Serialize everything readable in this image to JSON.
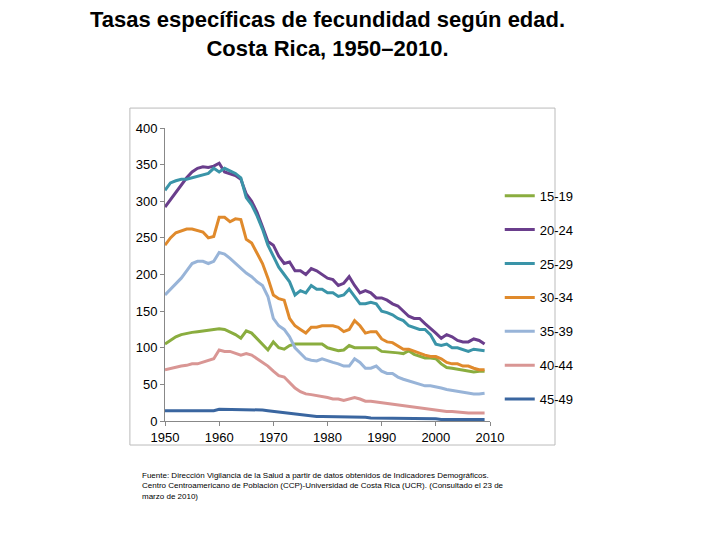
{
  "chart_data": {
    "type": "line",
    "title": [
      "Tasas específicas de fecundidad según edad.",
      "Costa Rica, 1950–2010."
    ],
    "source": [
      "Fuente: Dirección Vigilancia de la Salud a partir de datos obtenidos de Indicadores Demográficos.",
      "Centro Centroamericano de Población (CCP)-Universidad de Costa Rica (UCR). (Consultado el 23 de",
      "marzo de 2010)"
    ],
    "x": [
      1950,
      1951,
      1952,
      1953,
      1954,
      1955,
      1956,
      1957,
      1958,
      1959,
      1960,
      1961,
      1962,
      1963,
      1964,
      1965,
      1966,
      1967,
      1968,
      1969,
      1970,
      1971,
      1972,
      1973,
      1974,
      1975,
      1976,
      1977,
      1978,
      1979,
      1980,
      1981,
      1982,
      1983,
      1984,
      1985,
      1986,
      1987,
      1988,
      1989,
      1990,
      1991,
      1992,
      1993,
      1994,
      1995,
      1996,
      1997,
      1998,
      1999,
      2000,
      2001,
      2002,
      2003,
      2004,
      2005,
      2006,
      2007,
      2008,
      2009
    ],
    "xlim": [
      1950,
      2010
    ],
    "xticks": [
      1950,
      1960,
      1970,
      1980,
      1990,
      2000,
      2010
    ],
    "ylim": [
      0,
      400
    ],
    "yticks": [
      0,
      50,
      100,
      150,
      200,
      250,
      300,
      350,
      400
    ],
    "grid": false,
    "legend": "right",
    "series": [
      {
        "name": "15-19",
        "color": "#8aad3f",
        "values": [
          105,
          110,
          115,
          118,
          120,
          121,
          122,
          123,
          124,
          124,
          126,
          125,
          122,
          118,
          113,
          123,
          120,
          112,
          105,
          97,
          108,
          100,
          98,
          103,
          105,
          105,
          104,
          105,
          104,
          105,
          100,
          98,
          96,
          97,
          103,
          100,
          100,
          100,
          99,
          100,
          95,
          94,
          93,
          93,
          92,
          96,
          91,
          88,
          86,
          86,
          85,
          78,
          73,
          72,
          71,
          70,
          68,
          67,
          68,
          68
        ]
      },
      {
        "name": "20-24",
        "color": "#6a3e8c",
        "values": [
          292,
          302,
          312,
          322,
          332,
          340,
          345,
          347,
          346,
          348,
          352,
          340,
          338,
          335,
          330,
          310,
          300,
          285,
          265,
          245,
          240,
          225,
          215,
          217,
          205,
          205,
          200,
          208,
          205,
          200,
          195,
          193,
          185,
          188,
          197,
          185,
          175,
          178,
          175,
          168,
          168,
          165,
          160,
          157,
          150,
          143,
          140,
          140,
          133,
          127,
          120,
          113,
          118,
          115,
          110,
          108,
          108,
          112,
          110,
          105
        ]
      },
      {
        "name": "25-29",
        "color": "#3a94a8",
        "values": [
          315,
          325,
          328,
          330,
          330,
          332,
          333,
          335,
          338,
          345,
          340,
          345,
          342,
          338,
          332,
          305,
          295,
          280,
          262,
          240,
          225,
          210,
          200,
          190,
          172,
          178,
          175,
          185,
          180,
          180,
          175,
          175,
          170,
          172,
          180,
          170,
          160,
          160,
          162,
          160,
          150,
          148,
          145,
          140,
          137,
          130,
          127,
          125,
          125,
          118,
          105,
          103,
          105,
          100,
          100,
          98,
          95,
          98,
          97,
          96
        ]
      },
      {
        "name": "30-34",
        "color": "#e08a2c",
        "values": [
          240,
          250,
          257,
          260,
          262,
          262,
          260,
          258,
          250,
          252,
          278,
          278,
          272,
          276,
          275,
          248,
          243,
          230,
          215,
          195,
          172,
          167,
          165,
          140,
          130,
          125,
          120,
          128,
          128,
          130,
          130,
          130,
          128,
          122,
          125,
          137,
          130,
          120,
          122,
          122,
          112,
          108,
          107,
          103,
          98,
          98,
          95,
          92,
          90,
          88,
          88,
          85,
          80,
          78,
          78,
          75,
          75,
          72,
          70,
          70
        ]
      },
      {
        "name": "35-39",
        "color": "#98b4d8",
        "values": [
          172,
          180,
          188,
          195,
          205,
          215,
          218,
          218,
          215,
          218,
          230,
          228,
          222,
          215,
          208,
          202,
          197,
          190,
          185,
          170,
          140,
          130,
          125,
          115,
          100,
          92,
          85,
          83,
          82,
          85,
          82,
          80,
          78,
          75,
          75,
          85,
          80,
          72,
          72,
          75,
          68,
          65,
          65,
          60,
          57,
          55,
          52,
          50,
          48,
          48,
          47,
          45,
          43,
          42,
          40,
          40,
          38,
          37,
          37,
          38
        ]
      },
      {
        "name": "40-44",
        "color": "#d99694",
        "values": [
          70,
          72,
          73,
          75,
          76,
          78,
          78,
          80,
          82,
          85,
          97,
          95,
          95,
          93,
          90,
          92,
          90,
          85,
          80,
          75,
          68,
          62,
          60,
          52,
          45,
          40,
          37,
          36,
          35,
          33,
          32,
          30,
          30,
          28,
          30,
          32,
          30,
          27,
          27,
          26,
          25,
          24,
          23,
          22,
          21,
          20,
          19,
          18,
          17,
          16,
          15,
          14,
          13,
          13,
          12,
          12,
          11,
          11,
          11,
          11
        ]
      },
      {
        "name": "45-49",
        "color": "#3a66a0",
        "values": [
          14,
          14,
          14,
          14,
          14,
          14,
          14,
          14,
          14,
          14,
          16,
          16,
          16,
          16,
          16,
          16,
          16,
          16,
          15,
          14,
          13,
          12,
          11,
          10,
          10,
          8,
          7,
          7,
          6,
          6,
          6,
          5,
          5,
          5,
          5,
          5,
          5,
          5,
          4,
          4,
          4,
          4,
          3,
          3,
          3,
          3,
          3,
          3,
          3,
          3,
          3,
          2,
          2,
          2,
          2,
          2,
          2,
          2,
          2,
          2
        ]
      }
    ]
  }
}
